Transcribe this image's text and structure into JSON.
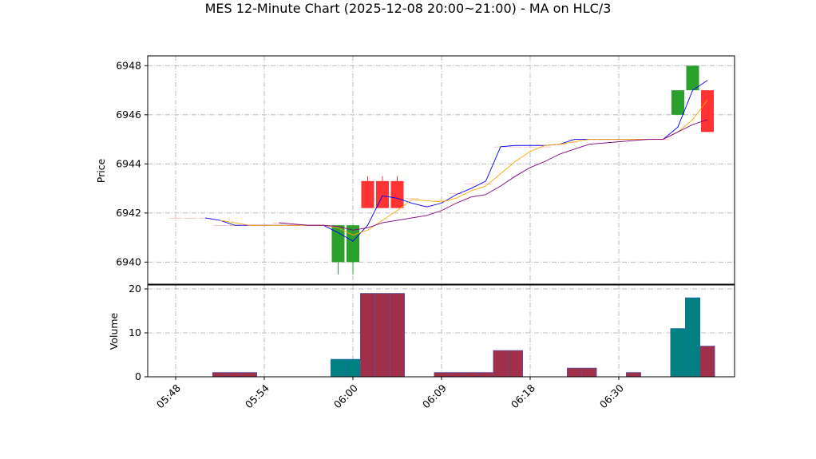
{
  "chart_data": {
    "type": "candlestick",
    "title": "MES 12-Minute Chart (2025-12-08 20:00~21:00) - MA on HLC/3",
    "ylabel": "Price",
    "categories": [
      "05:48",
      null,
      null,
      null,
      null,
      null,
      "05:54",
      null,
      null,
      null,
      null,
      null,
      "06:00",
      null,
      null,
      null,
      null,
      null,
      "06:09",
      null,
      null,
      null,
      null,
      null,
      "06:18",
      null,
      null,
      null,
      null,
      null,
      "06:30",
      null,
      null,
      null,
      null,
      null,
      null
    ],
    "open": [
      6941.8,
      6941.8,
      6941.8,
      6941.5,
      6941.5,
      6941.5,
      6941.5,
      6941.6,
      6941.5,
      6941.5,
      6941.5,
      6940,
      6940,
      6943.3,
      6943.3,
      6943.3,
      6942.6,
      6942.3,
      6942.5,
      6942.8,
      6943.2,
      6943.2,
      6944.7,
      6944.7,
      6944.7,
      6944.7,
      6944.8,
      6945,
      6945,
      6945,
      6945,
      6945,
      6945,
      6945,
      6946,
      6947,
      6947
    ],
    "high": [
      6941.8,
      6941.8,
      6941.8,
      6941.5,
      6941.5,
      6941.5,
      6941.5,
      6941.6,
      6941.5,
      6941.5,
      6941.5,
      6941.5,
      6941.5,
      6943.5,
      6943.5,
      6943.5,
      6942.6,
      6942.3,
      6942.5,
      6942.8,
      6943.2,
      6943.2,
      6944.7,
      6944.7,
      6944.7,
      6944.7,
      6944.8,
      6945,
      6945,
      6945,
      6945,
      6945,
      6945,
      6945,
      6947,
      6948,
      6947
    ],
    "low": [
      6941.8,
      6941.8,
      6941.8,
      6941.5,
      6941.5,
      6941.5,
      6941.5,
      6941.6,
      6941.5,
      6941.5,
      6941.5,
      6939.5,
      6939.5,
      6942.2,
      6942.2,
      6942.2,
      6942.6,
      6942.3,
      6942.5,
      6942.8,
      6943.2,
      6943.2,
      6944.7,
      6944.7,
      6944.7,
      6944.7,
      6944.8,
      6945,
      6945,
      6945,
      6945,
      6945,
      6945,
      6945,
      6946,
      6947,
      6945.3
    ],
    "close": [
      6941.8,
      6941.8,
      6941.8,
      6941.5,
      6941.5,
      6941.5,
      6941.5,
      6941.6,
      6941.5,
      6941.5,
      6941.5,
      6941.5,
      6941.5,
      6942.2,
      6942.2,
      6942.2,
      6942.6,
      6942.3,
      6942.5,
      6942.8,
      6943.2,
      6943.2,
      6944.7,
      6944.7,
      6944.7,
      6944.7,
      6944.8,
      6945,
      6945,
      6945,
      6945,
      6945,
      6945,
      6945,
      6947,
      6948,
      6945.3
    ],
    "up_color": "#2ca02c",
    "down_color": "#ff3333",
    "series": [
      {
        "color": "#0000ff",
        "values": [
          null,
          null,
          6941.8,
          6941.7,
          6941.5,
          6941.5,
          6941.5,
          6941.5,
          6941.5,
          6941.5,
          6941.5,
          6941.2,
          6940.85,
          6941.5,
          6942.7,
          6942.6,
          6942.4,
          6942.25,
          6942.4,
          6942.75,
          6943,
          6943.3,
          6944.7,
          6944.75,
          6944.75,
          6944.75,
          6944.8,
          6945,
          6945,
          6945,
          6945,
          6945,
          6945,
          6945,
          6945.5,
          6947,
          6947.4
        ]
      },
      {
        "color": "#ffa500",
        "values": [
          null,
          null,
          null,
          6941.7,
          6941.6,
          6941.5,
          6941.5,
          6941.5,
          6941.5,
          6941.5,
          6941.5,
          6941.4,
          6941.1,
          6941.3,
          6941.7,
          6942.1,
          6942.55,
          6942.5,
          6942.45,
          6942.6,
          6942.9,
          6943.1,
          6943.6,
          6944.1,
          6944.5,
          6944.75,
          6944.8,
          6944.9,
          6945,
          6945,
          6945,
          6945,
          6945,
          6945,
          6945.3,
          6945.8,
          6946.6
        ]
      },
      {
        "color": "#800080",
        "values": [
          null,
          null,
          null,
          null,
          null,
          null,
          null,
          6941.6,
          6941.55,
          6941.5,
          6941.5,
          6941.45,
          6941.3,
          6941.4,
          6941.6,
          6941.7,
          6941.8,
          6941.9,
          6942.1,
          6942.4,
          6942.65,
          6942.75,
          6943.1,
          6943.5,
          6943.85,
          6944.1,
          6944.4,
          6944.6,
          6944.8,
          6944.85,
          6944.9,
          6944.95,
          6945,
          6945,
          6945.3,
          6945.6,
          6945.8
        ]
      }
    ],
    "ylim": [
      6939.1,
      6948.4
    ],
    "yticks": [
      6940,
      6942,
      6944,
      6946,
      6948
    ],
    "grid": true,
    "volume": {
      "ylabel": "Volume",
      "up_color": "#008080",
      "down_color": "#a0304a",
      "values": [
        0,
        0,
        0,
        1,
        1,
        1,
        0,
        0,
        0,
        0,
        0,
        4,
        4,
        19,
        19,
        19,
        0,
        0,
        1,
        1,
        1,
        1,
        6,
        6,
        0,
        0,
        0,
        2,
        2,
        0,
        0,
        1,
        0,
        0,
        11,
        18,
        7
      ],
      "ylim": [
        0,
        20.9
      ],
      "yticks": [
        0,
        10,
        20
      ]
    }
  }
}
